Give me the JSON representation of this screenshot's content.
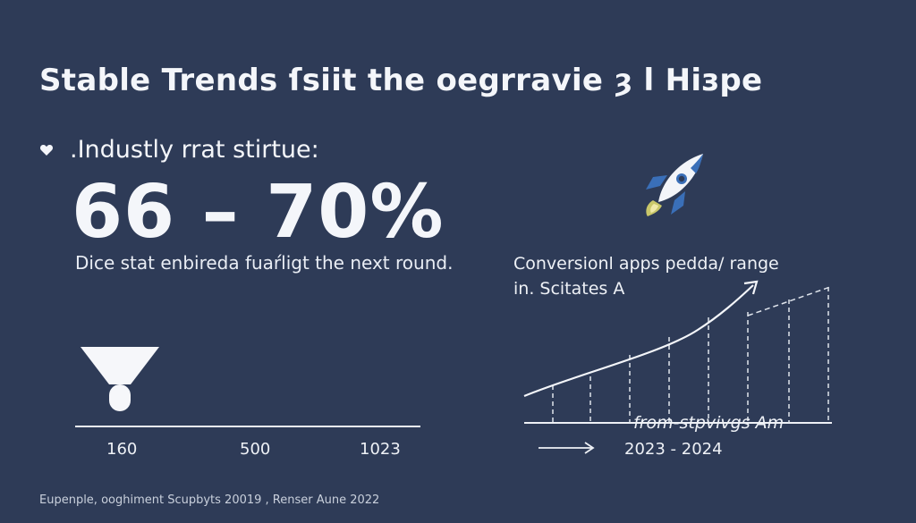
{
  "header": {
    "title": "Stable Trends ſsiit the oegrravie ȝ l Hiзpe"
  },
  "left_panel": {
    "bullet_icon": "heart-icon",
    "industry_label": ".Industly rrat stirtue:",
    "big_stat": "66 – 70%",
    "caption": "Dice stat enbireda fuaŕligt the next round.",
    "funnel_icon": "funnel-icon",
    "axis_ticks": [
      "160",
      "500",
      "1023"
    ]
  },
  "right_panel": {
    "rocket_icon": "rocket-icon",
    "conversion_line1": "Conversionl apps pedda/ range",
    "conversion_line2": "in. Scitates A",
    "from_text": "from-stpvivgs  Am",
    "arrow_icon": "arrow-right-icon",
    "year_range": "2023 - 2024"
  },
  "footer": {
    "text": "Eupenple, ooghiment Scupbyts 20019 , Renser Aune 2022"
  },
  "colors": {
    "background": "#2e3b57",
    "foreground": "#f4f6fa",
    "rocket_blue": "#3a6fb8",
    "rocket_flame": "#c9c76a"
  }
}
